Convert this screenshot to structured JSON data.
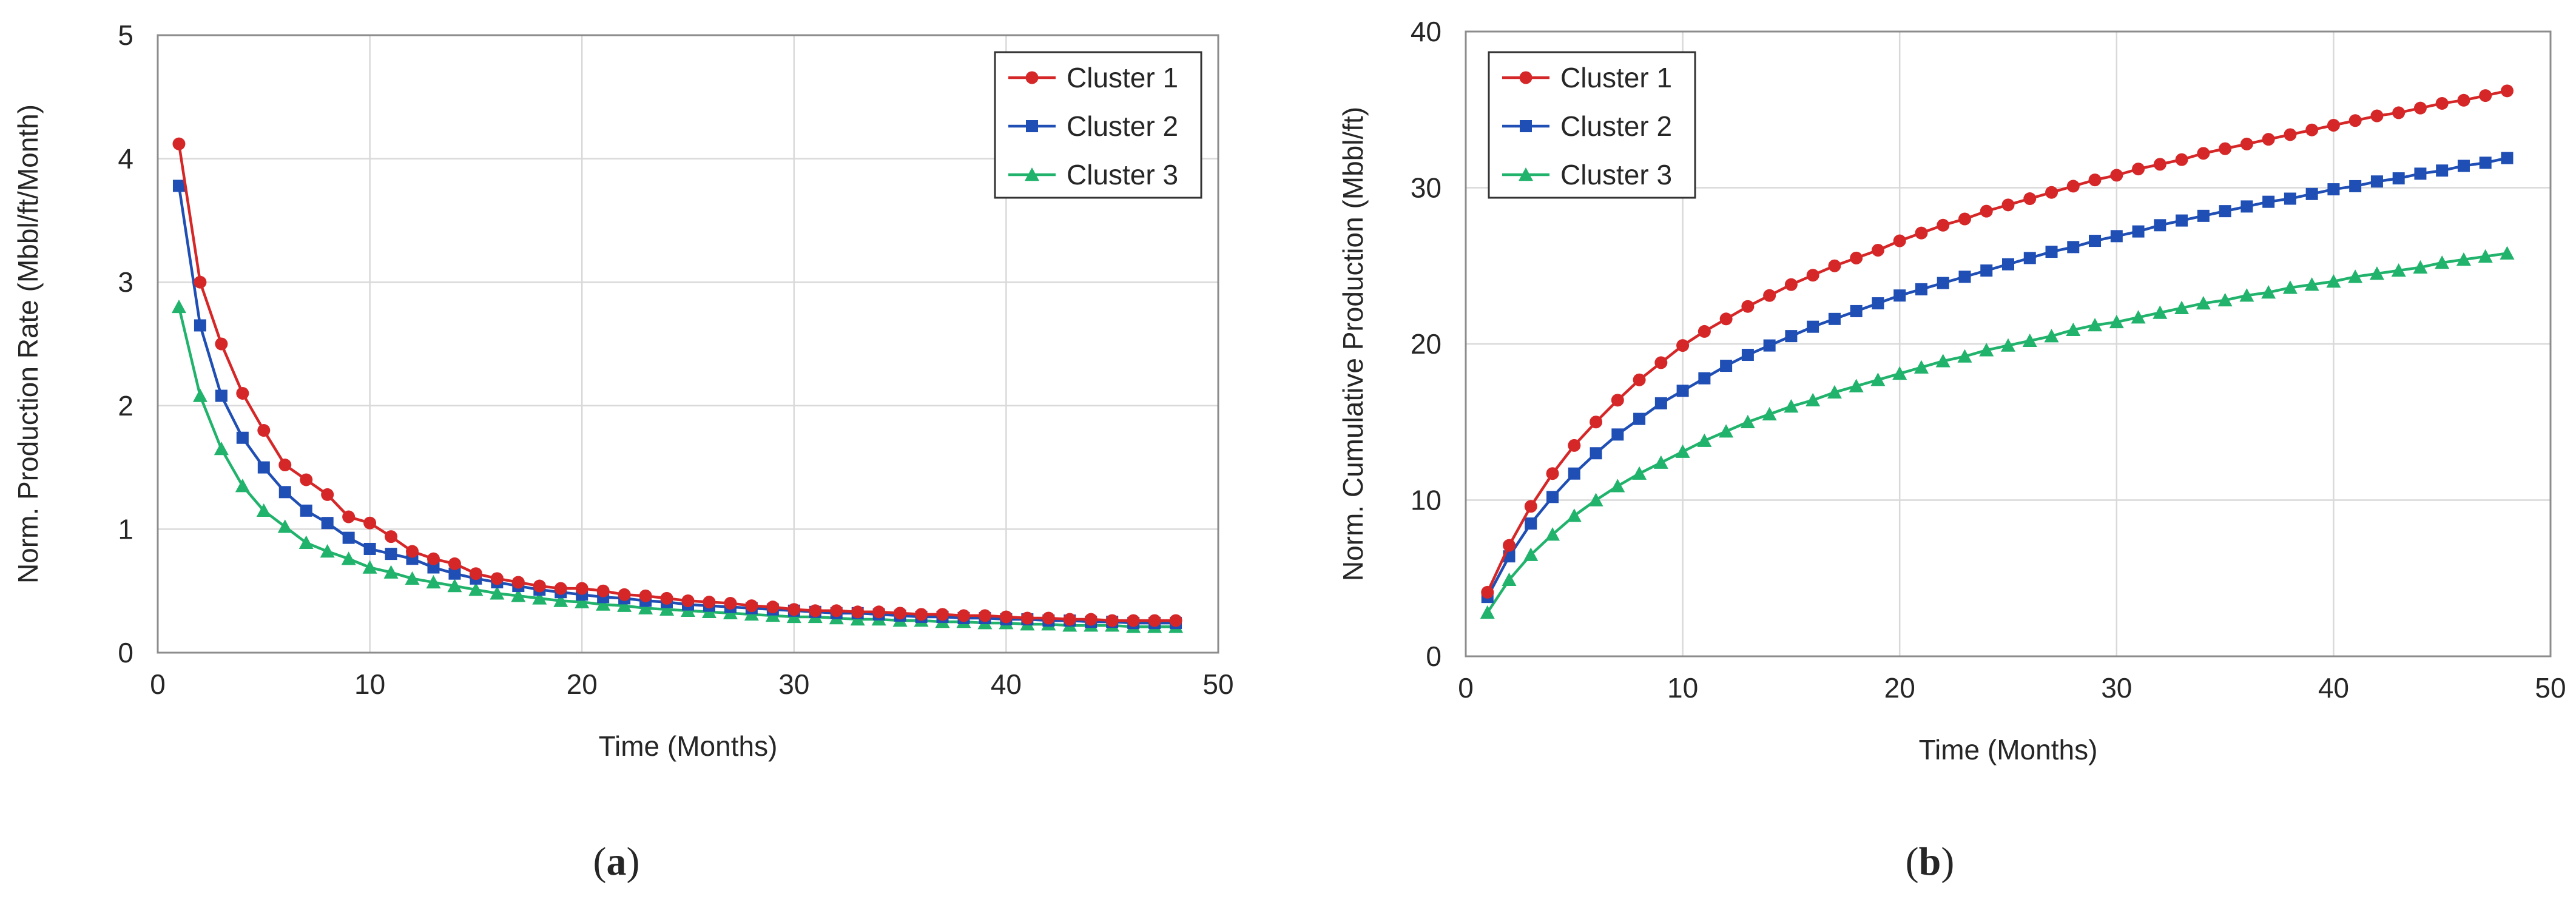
{
  "chart_data": [
    {
      "type": "line",
      "panel_label": "a",
      "xlabel": "Time (Months)",
      "ylabel": "Norm. Production Rate (Mbbl/ft/Month)",
      "xlim": [
        0,
        50
      ],
      "ylim": [
        0,
        5
      ],
      "xticks": [
        "0",
        "10",
        "20",
        "30",
        "40",
        "50"
      ],
      "yticks": [
        "0",
        "1",
        "2",
        "3",
        "4",
        "5"
      ],
      "grid": true,
      "legend_position": "top-right",
      "x": [
        1,
        2,
        3,
        4,
        5,
        6,
        7,
        8,
        9,
        10,
        11,
        12,
        13,
        14,
        15,
        16,
        17,
        18,
        19,
        20,
        21,
        22,
        23,
        24,
        25,
        26,
        27,
        28,
        29,
        30,
        31,
        32,
        33,
        34,
        35,
        36,
        37,
        38,
        39,
        40,
        41,
        42,
        43,
        44,
        45,
        46,
        47,
        48
      ],
      "series": [
        {
          "name": "Cluster 1",
          "color": "#d62728",
          "marker": "circle",
          "values": [
            4.12,
            3.0,
            2.5,
            2.1,
            1.8,
            1.52,
            1.4,
            1.28,
            1.1,
            1.05,
            0.94,
            0.82,
            0.76,
            0.72,
            0.64,
            0.6,
            0.57,
            0.54,
            0.52,
            0.52,
            0.5,
            0.47,
            0.46,
            0.44,
            0.42,
            0.41,
            0.4,
            0.38,
            0.37,
            0.35,
            0.34,
            0.34,
            0.33,
            0.33,
            0.32,
            0.31,
            0.31,
            0.3,
            0.3,
            0.29,
            0.28,
            0.28,
            0.27,
            0.27,
            0.26,
            0.26,
            0.26,
            0.26
          ]
        },
        {
          "name": "Cluster 2",
          "color": "#1f4eb4",
          "marker": "square",
          "values": [
            3.78,
            2.65,
            2.08,
            1.74,
            1.5,
            1.3,
            1.15,
            1.05,
            0.93,
            0.84,
            0.8,
            0.76,
            0.69,
            0.64,
            0.6,
            0.57,
            0.54,
            0.51,
            0.49,
            0.47,
            0.45,
            0.44,
            0.42,
            0.41,
            0.39,
            0.38,
            0.37,
            0.36,
            0.35,
            0.34,
            0.33,
            0.32,
            0.32,
            0.31,
            0.3,
            0.29,
            0.29,
            0.28,
            0.28,
            0.27,
            0.27,
            0.26,
            0.26,
            0.25,
            0.25,
            0.24,
            0.24,
            0.24
          ]
        },
        {
          "name": "Cluster 3",
          "color": "#21b36c",
          "marker": "triangle",
          "values": [
            2.8,
            2.08,
            1.65,
            1.35,
            1.15,
            1.02,
            0.89,
            0.82,
            0.76,
            0.69,
            0.65,
            0.6,
            0.57,
            0.54,
            0.51,
            0.48,
            0.46,
            0.44,
            0.42,
            0.41,
            0.39,
            0.38,
            0.36,
            0.35,
            0.34,
            0.33,
            0.32,
            0.31,
            0.3,
            0.29,
            0.29,
            0.28,
            0.27,
            0.27,
            0.26,
            0.26,
            0.25,
            0.25,
            0.24,
            0.24,
            0.23,
            0.23,
            0.22,
            0.22,
            0.22,
            0.21,
            0.21,
            0.21
          ]
        }
      ]
    },
    {
      "type": "line",
      "panel_label": "b",
      "xlabel": "Time (Months)",
      "ylabel": "Norm. Cumulative Production (Mbbl/ft)",
      "xlim": [
        0,
        50
      ],
      "ylim": [
        0,
        40
      ],
      "xticks": [
        "0",
        "10",
        "20",
        "30",
        "40",
        "50"
      ],
      "yticks": [
        "0",
        "10",
        "20",
        "30",
        "40"
      ],
      "grid": true,
      "legend_position": "top-left",
      "x": [
        1,
        2,
        3,
        4,
        5,
        6,
        7,
        8,
        9,
        10,
        11,
        12,
        13,
        14,
        15,
        16,
        17,
        18,
        19,
        20,
        21,
        22,
        23,
        24,
        25,
        26,
        27,
        28,
        29,
        30,
        31,
        32,
        33,
        34,
        35,
        36,
        37,
        38,
        39,
        40,
        41,
        42,
        43,
        44,
        45,
        46,
        47,
        48
      ],
      "series": [
        {
          "name": "Cluster 1",
          "color": "#d62728",
          "marker": "circle",
          "values": [
            4.1,
            7.1,
            9.6,
            11.7,
            13.5,
            15.0,
            16.4,
            17.7,
            18.8,
            19.9,
            20.8,
            21.6,
            22.4,
            23.1,
            23.8,
            24.4,
            25.0,
            25.5,
            26.0,
            26.6,
            27.1,
            27.6,
            28.0,
            28.5,
            28.9,
            29.3,
            29.7,
            30.1,
            30.5,
            30.8,
            31.2,
            31.5,
            31.8,
            32.2,
            32.5,
            32.8,
            33.1,
            33.4,
            33.7,
            34.0,
            34.3,
            34.6,
            34.8,
            35.1,
            35.4,
            35.6,
            35.9,
            36.2
          ]
        },
        {
          "name": "Cluster 2",
          "color": "#1f4eb4",
          "marker": "square",
          "values": [
            3.8,
            6.4,
            8.5,
            10.2,
            11.7,
            13.0,
            14.2,
            15.2,
            16.2,
            17.0,
            17.8,
            18.6,
            19.3,
            19.9,
            20.5,
            21.1,
            21.6,
            22.1,
            22.6,
            23.1,
            23.5,
            23.9,
            24.3,
            24.7,
            25.1,
            25.5,
            25.9,
            26.2,
            26.6,
            26.9,
            27.2,
            27.6,
            27.9,
            28.2,
            28.5,
            28.8,
            29.1,
            29.3,
            29.6,
            29.9,
            30.1,
            30.4,
            30.6,
            30.9,
            31.1,
            31.4,
            31.6,
            31.9
          ]
        },
        {
          "name": "Cluster 3",
          "color": "#21b36c",
          "marker": "triangle",
          "values": [
            2.8,
            4.9,
            6.5,
            7.8,
            9.0,
            10.0,
            10.9,
            11.7,
            12.4,
            13.1,
            13.8,
            14.4,
            15.0,
            15.5,
            16.0,
            16.4,
            16.9,
            17.3,
            17.7,
            18.1,
            18.5,
            18.9,
            19.2,
            19.6,
            19.9,
            20.2,
            20.5,
            20.9,
            21.2,
            21.4,
            21.7,
            22.0,
            22.3,
            22.6,
            22.8,
            23.1,
            23.3,
            23.6,
            23.8,
            24.0,
            24.3,
            24.5,
            24.7,
            24.9,
            25.2,
            25.4,
            25.6,
            25.8
          ]
        }
      ]
    }
  ]
}
